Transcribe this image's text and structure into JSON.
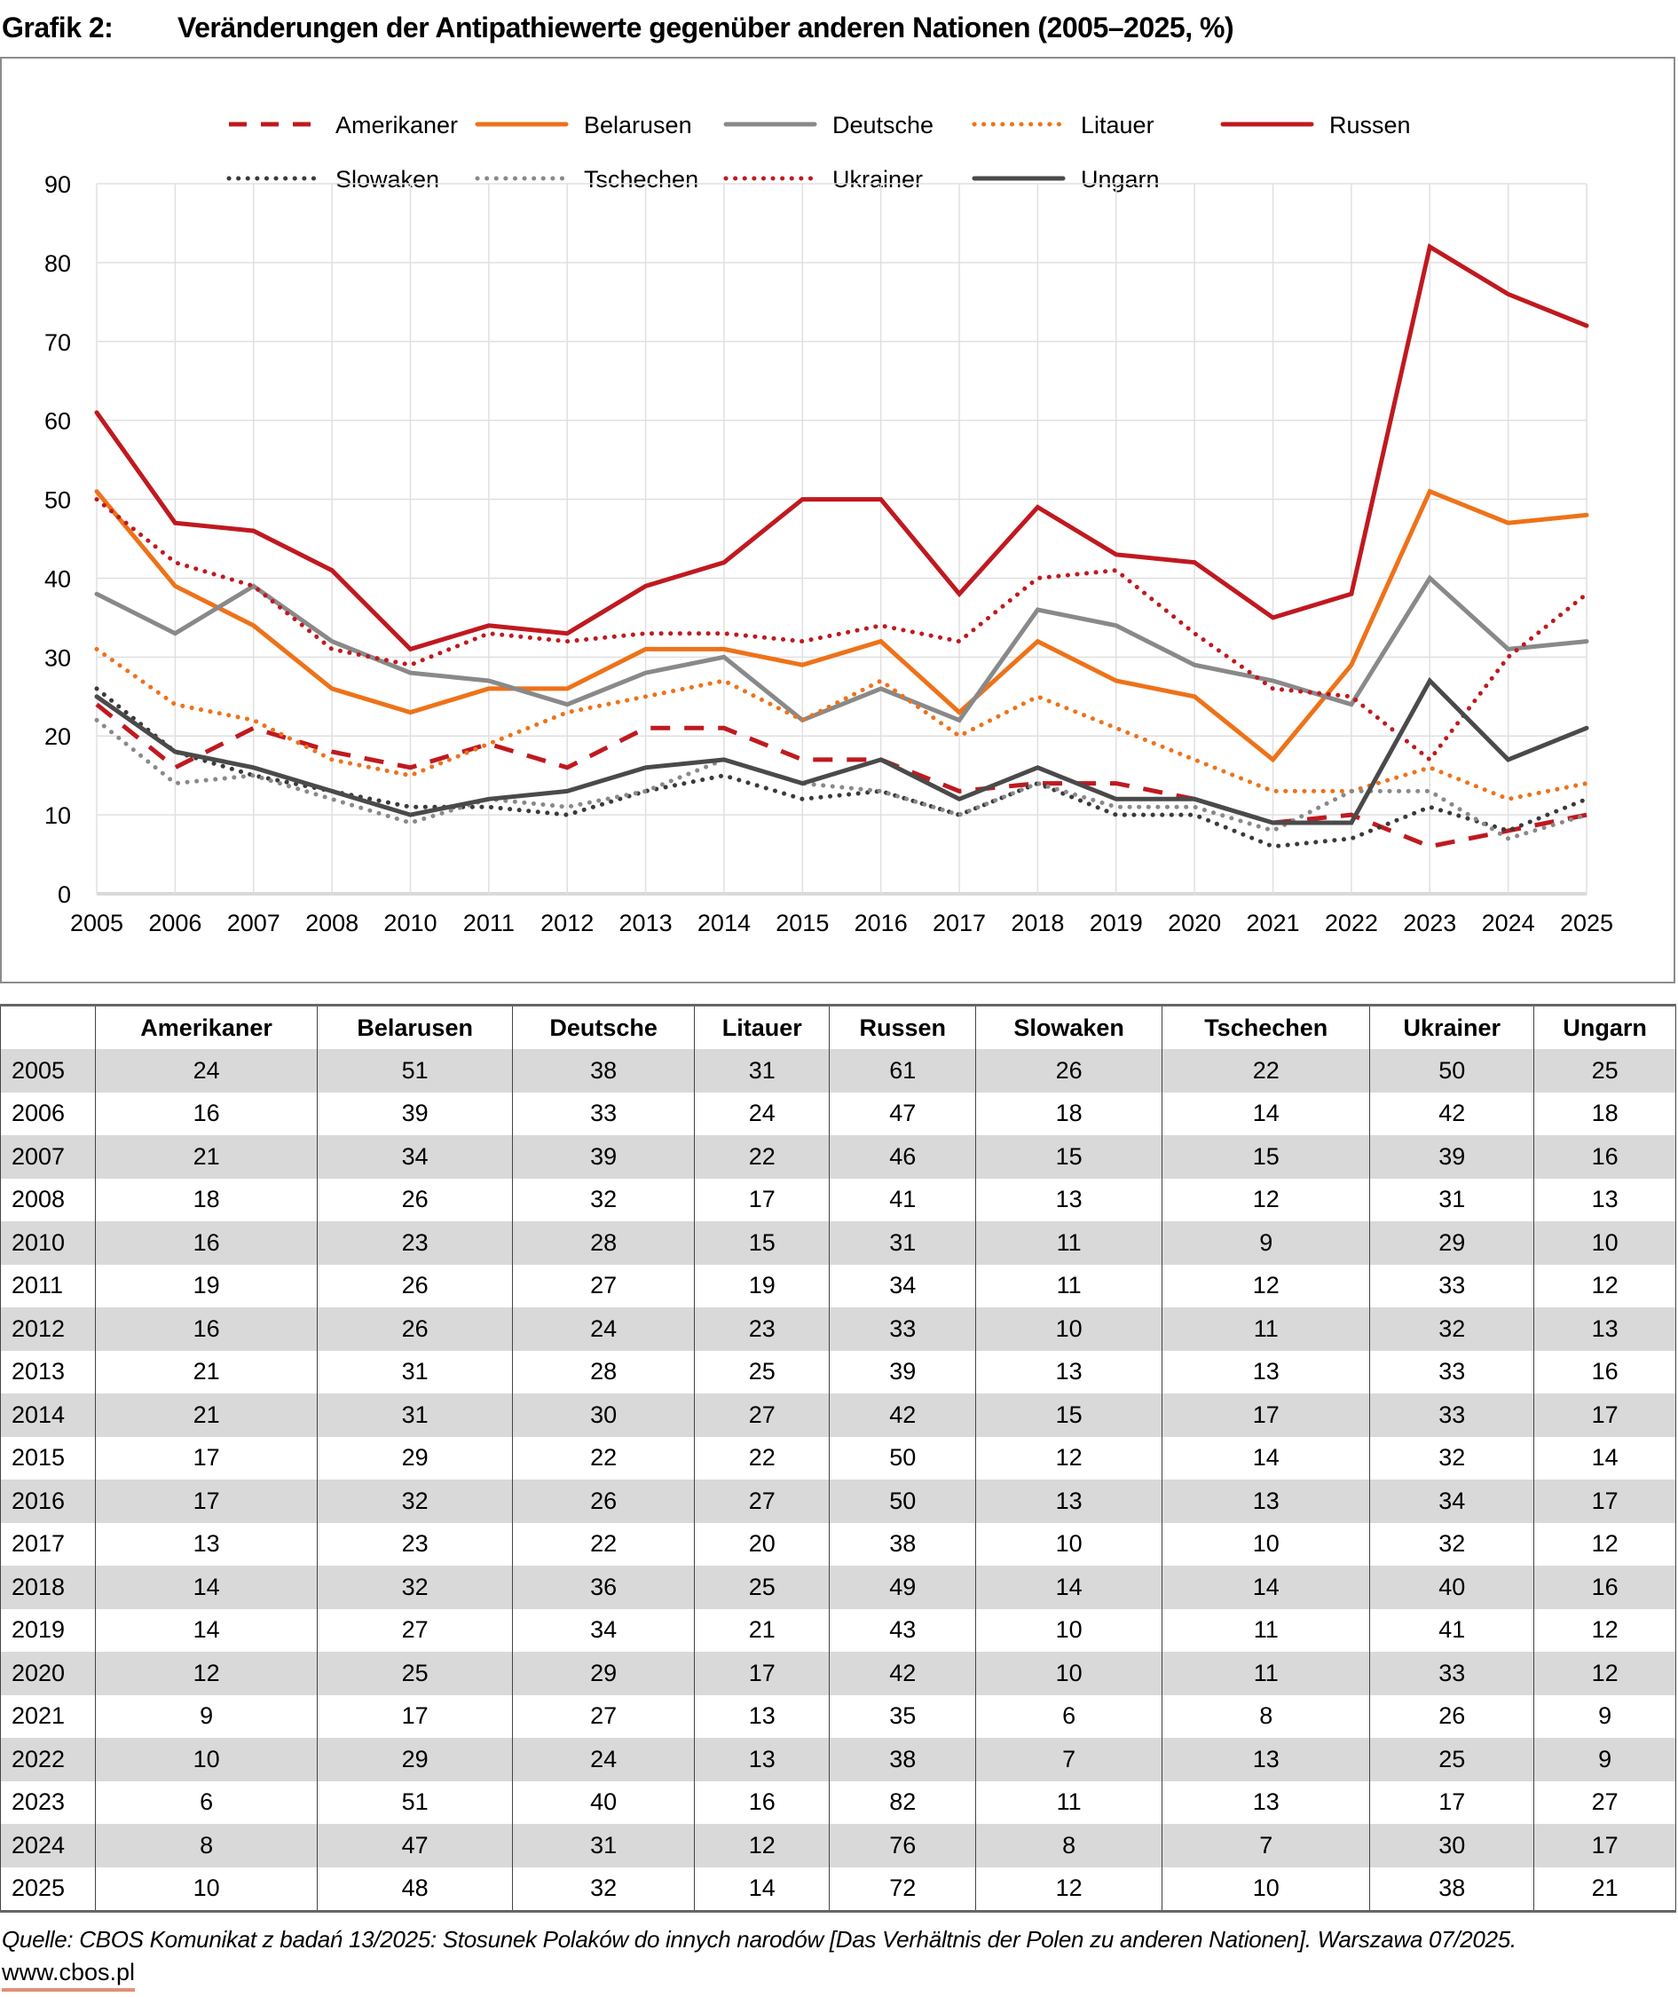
{
  "header": {
    "label": "Grafik 2:",
    "title": "Veränderungen der Antipathiewerte gegenüber anderen Nationen (2005–2025, %)"
  },
  "chart_data": {
    "type": "line",
    "title": "Veränderungen der Antipathiewerte gegenüber anderen Nationen (2005–2025, %)",
    "xlabel": "",
    "ylabel": "",
    "x": [
      "2005",
      "2006",
      "2007",
      "2008",
      "2010",
      "2011",
      "2012",
      "2013",
      "2014",
      "2015",
      "2016",
      "2017",
      "2018",
      "2019",
      "2020",
      "2021",
      "2022",
      "2023",
      "2024",
      "2025"
    ],
    "ylim": [
      0,
      90
    ],
    "yticks": [
      0,
      10,
      20,
      30,
      40,
      50,
      60,
      70,
      80,
      90
    ],
    "grid": true,
    "legend_position": "top-center",
    "series": [
      {
        "name": "Amerikaner",
        "color": "#c0191f",
        "style": "dashed",
        "values": [
          24,
          16,
          21,
          18,
          16,
          19,
          16,
          21,
          21,
          17,
          17,
          13,
          14,
          14,
          12,
          9,
          10,
          6,
          8,
          10
        ]
      },
      {
        "name": "Belarusen",
        "color": "#ee7219",
        "style": "solid",
        "values": [
          51,
          39,
          34,
          26,
          23,
          26,
          26,
          31,
          31,
          29,
          32,
          23,
          32,
          27,
          25,
          17,
          29,
          51,
          47,
          48
        ]
      },
      {
        "name": "Deutsche",
        "color": "#898989",
        "style": "solid",
        "values": [
          38,
          33,
          39,
          32,
          28,
          27,
          24,
          28,
          30,
          22,
          26,
          22,
          36,
          34,
          29,
          27,
          24,
          40,
          31,
          32
        ]
      },
      {
        "name": "Litauer",
        "color": "#ee7219",
        "style": "dotted",
        "values": [
          31,
          24,
          22,
          17,
          15,
          19,
          23,
          25,
          27,
          22,
          27,
          20,
          25,
          21,
          17,
          13,
          13,
          16,
          12,
          14
        ]
      },
      {
        "name": "Russen",
        "color": "#c0191f",
        "style": "solid",
        "values": [
          61,
          47,
          46,
          41,
          31,
          34,
          33,
          39,
          42,
          50,
          50,
          38,
          49,
          43,
          42,
          35,
          38,
          82,
          76,
          72
        ]
      },
      {
        "name": "Slowaken",
        "color": "#3a3a3a",
        "style": "dotted",
        "values": [
          26,
          18,
          15,
          13,
          11,
          11,
          10,
          13,
          15,
          12,
          13,
          10,
          14,
          10,
          10,
          6,
          7,
          11,
          8,
          12
        ]
      },
      {
        "name": "Tschechen",
        "color": "#898989",
        "style": "dotted",
        "values": [
          22,
          14,
          15,
          12,
          9,
          12,
          11,
          13,
          17,
          14,
          13,
          10,
          14,
          11,
          11,
          8,
          13,
          13,
          7,
          10
        ]
      },
      {
        "name": "Ukrainer",
        "color": "#c0191f",
        "style": "dotted",
        "values": [
          50,
          42,
          39,
          31,
          29,
          33,
          32,
          33,
          33,
          32,
          34,
          32,
          40,
          41,
          33,
          26,
          25,
          17,
          30,
          38
        ]
      },
      {
        "name": "Ungarn",
        "color": "#4a4a4a",
        "style": "solid",
        "values": [
          25,
          18,
          16,
          13,
          10,
          12,
          13,
          16,
          17,
          14,
          17,
          12,
          16,
          12,
          12,
          9,
          9,
          27,
          17,
          21
        ]
      }
    ]
  },
  "table": {
    "columns": [
      "",
      "Amerikaner",
      "Belarusen",
      "Deutsche",
      "Litauer",
      "Russen",
      "Slowaken",
      "Tschechen",
      "Ukrainer",
      "Ungarn"
    ],
    "rows": [
      [
        "2005",
        "24",
        "51",
        "38",
        "31",
        "61",
        "26",
        "22",
        "50",
        "25"
      ],
      [
        "2006",
        "16",
        "39",
        "33",
        "24",
        "47",
        "18",
        "14",
        "42",
        "18"
      ],
      [
        "2007",
        "21",
        "34",
        "39",
        "22",
        "46",
        "15",
        "15",
        "39",
        "16"
      ],
      [
        "2008",
        "18",
        "26",
        "32",
        "17",
        "41",
        "13",
        "12",
        "31",
        "13"
      ],
      [
        "2010",
        "16",
        "23",
        "28",
        "15",
        "31",
        "11",
        "9",
        "29",
        "10"
      ],
      [
        "2011",
        "19",
        "26",
        "27",
        "19",
        "34",
        "11",
        "12",
        "33",
        "12"
      ],
      [
        "2012",
        "16",
        "26",
        "24",
        "23",
        "33",
        "10",
        "11",
        "32",
        "13"
      ],
      [
        "2013",
        "21",
        "31",
        "28",
        "25",
        "39",
        "13",
        "13",
        "33",
        "16"
      ],
      [
        "2014",
        "21",
        "31",
        "30",
        "27",
        "42",
        "15",
        "17",
        "33",
        "17"
      ],
      [
        "2015",
        "17",
        "29",
        "22",
        "22",
        "50",
        "12",
        "14",
        "32",
        "14"
      ],
      [
        "2016",
        "17",
        "32",
        "26",
        "27",
        "50",
        "13",
        "13",
        "34",
        "17"
      ],
      [
        "2017",
        "13",
        "23",
        "22",
        "20",
        "38",
        "10",
        "10",
        "32",
        "12"
      ],
      [
        "2018",
        "14",
        "32",
        "36",
        "25",
        "49",
        "14",
        "14",
        "40",
        "16"
      ],
      [
        "2019",
        "14",
        "27",
        "34",
        "21",
        "43",
        "10",
        "11",
        "41",
        "12"
      ],
      [
        "2020",
        "12",
        "25",
        "29",
        "17",
        "42",
        "10",
        "11",
        "33",
        "12"
      ],
      [
        "2021",
        "9",
        "17",
        "27",
        "13",
        "35",
        "6",
        "8",
        "26",
        "9"
      ],
      [
        "2022",
        "10",
        "29",
        "24",
        "13",
        "38",
        "7",
        "13",
        "25",
        "9"
      ],
      [
        "2023",
        "6",
        "51",
        "40",
        "16",
        "82",
        "11",
        "13",
        "17",
        "27"
      ],
      [
        "2024",
        "8",
        "47",
        "31",
        "12",
        "76",
        "8",
        "7",
        "30",
        "17"
      ],
      [
        "2025",
        "10",
        "48",
        "32",
        "14",
        "72",
        "12",
        "10",
        "38",
        "21"
      ]
    ]
  },
  "footer": {
    "source": "Quelle: CBOS Komunikat z badań 13/2025: Stosunek Polaków do innych narodów [Das Verhältnis der Polen zu anderen Nationen]. Warszawa 07/2025.",
    "website": "www.cbos.pl"
  }
}
